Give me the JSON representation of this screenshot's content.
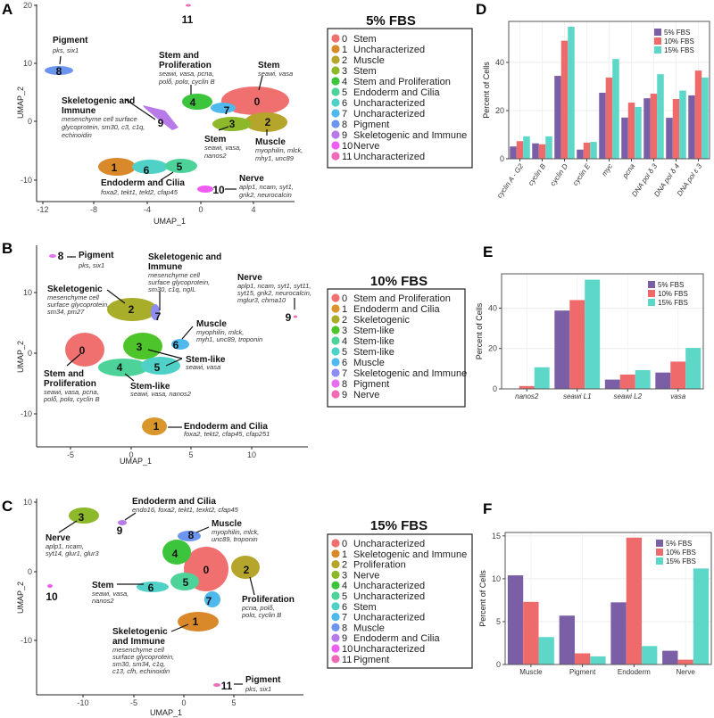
{
  "panels": {
    "A": {
      "label": "A"
    },
    "B": {
      "label": "B"
    },
    "C": {
      "label": "C"
    },
    "D": {
      "label": "D"
    },
    "E": {
      "label": "E"
    },
    "F": {
      "label": "F"
    }
  },
  "colors": {
    "fbs5": "#7b5fa6",
    "fbs10": "#ef6b6b",
    "fbs15": "#5dd8c8"
  },
  "umap": [
    {
      "id": "A",
      "xlabel": "UMAP_1",
      "ylabel": "UMAP_2",
      "xticks": [
        "-12",
        "-8",
        "-4",
        "0",
        "4"
      ],
      "yticks": [
        "20",
        "10",
        "0",
        "-10"
      ],
      "legend_title": "5% FBS",
      "legend": [
        {
          "num": "0",
          "label": "Stem",
          "color": "#f07070"
        },
        {
          "num": "1",
          "label": "Uncharacterized",
          "color": "#d9882a"
        },
        {
          "num": "2",
          "label": "Muscle",
          "color": "#b5a52a"
        },
        {
          "num": "3",
          "label": "Stem",
          "color": "#8db82a"
        },
        {
          "num": "4",
          "label": "Stem and Proliferation",
          "color": "#3cc43c"
        },
        {
          "num": "5",
          "label": "Endoderm and Cilia",
          "color": "#4dd39a"
        },
        {
          "num": "6",
          "label": "Uncharacterized",
          "color": "#4fd1c8"
        },
        {
          "num": "7",
          "label": "Uncharacterized",
          "color": "#4fb8ec"
        },
        {
          "num": "8",
          "label": "Pigment",
          "color": "#6b95ee"
        },
        {
          "num": "9",
          "label": "Skeletogenic and Immune",
          "color": "#b77ae8"
        },
        {
          "num": "10",
          "label": "Nerve",
          "color": "#ee5ef0"
        },
        {
          "num": "11",
          "label": "Uncharacterized",
          "color": "#f06ab8"
        }
      ],
      "annotations": [
        {
          "title": "Pigment",
          "genes": [
            "pks, six1"
          ]
        },
        {
          "title": "Stem and",
          "title2": "Proliferation",
          "genes": [
            "seawi, vasa, pcna,",
            "polδ, polα, cyclin B"
          ]
        },
        {
          "title": "Stem",
          "genes": [
            "seawi, vasa"
          ]
        },
        {
          "title": "Skeletogenic and",
          "title2": "Immune",
          "genes": [
            "mesenchyme cell surface",
            "glycoprotein, sm30, c3, c1q,",
            "echinoidin"
          ]
        },
        {
          "title": "Stem",
          "genes": [
            "seawi, vasa,",
            "nanos2"
          ]
        },
        {
          "title": "Muscle",
          "genes": [
            "myophilin, mlck,",
            "mhy1, unc89"
          ]
        },
        {
          "title": "Endoderm and Cilia",
          "genes": [
            "foxa2, tekt1, tekt2, cfap45"
          ]
        },
        {
          "title": "Nerve",
          "genes": [
            "aplp1, ncam, syt1,",
            "grik2, neurocalcin"
          ]
        }
      ]
    },
    {
      "id": "B",
      "xlabel": "UMAP_1",
      "ylabel": "UMAP_2",
      "xticks": [
        "-5",
        "0",
        "5",
        "10"
      ],
      "yticks": [
        "10",
        "0",
        "-10"
      ],
      "legend_title": "10% FBS",
      "legend": [
        {
          "num": "0",
          "label": "Stem and Proliferation",
          "color": "#f07070"
        },
        {
          "num": "1",
          "label": "Endoderm and Cilia",
          "color": "#d9962a"
        },
        {
          "num": "2",
          "label": "Skeletogenic",
          "color": "#a8ad2a"
        },
        {
          "num": "3",
          "label": "Stem-like",
          "color": "#4cc42a"
        },
        {
          "num": "4",
          "label": "Stem-like",
          "color": "#4dd39a"
        },
        {
          "num": "5",
          "label": "Stem-like",
          "color": "#4fd1c8"
        },
        {
          "num": "6",
          "label": "Muscle",
          "color": "#4fb8ec"
        },
        {
          "num": "7",
          "label": "Skeletogenic and Immune",
          "color": "#8f8cf0"
        },
        {
          "num": "8",
          "label": "Pigment",
          "color": "#e46ef0"
        },
        {
          "num": "9",
          "label": "Nerve",
          "color": "#f06ab8"
        }
      ],
      "annotations": [
        {
          "title": "Pigment",
          "genes": [
            "pks, six1"
          ]
        },
        {
          "title": "Skeletogenic and",
          "title2": "Immune",
          "genes": [
            "mesenchyme cell",
            "surface glycoprotein,",
            "sm30, c1q, ngIL"
          ]
        },
        {
          "title": "Skeletogenic",
          "genes": [
            "mesenchyme cell",
            "surface glycoprotein,",
            "sm34, pm27"
          ]
        },
        {
          "title": "Nerve",
          "genes": [
            "aplp1, ncam, syt1, syt11,",
            "syt15, grik2, neurocalcin,",
            "mglur3, chrna10"
          ]
        },
        {
          "title": "Muscle",
          "genes": [
            "myophilin, mlck,",
            "myh1, unc89, troponin"
          ]
        },
        {
          "title": "Stem-like",
          "genes": [
            "seawi, vasa"
          ]
        },
        {
          "title": "Stem and",
          "title2": "Proliferation",
          "genes": [
            "seawi, vasa, pcna,",
            "polδ, polα, cyclin B"
          ]
        },
        {
          "title": "Stem-like",
          "genes": [
            "seawi, vasa, nanos2"
          ]
        },
        {
          "title": "Endoderm and Cilia",
          "genes": [
            "foxa2, tekt2, cfap45, cfap251"
          ]
        }
      ]
    },
    {
      "id": "C",
      "xlabel": "UMAP_1",
      "ylabel": "UMAP_2",
      "xticks": [
        "-10",
        "-5",
        "0",
        "5"
      ],
      "yticks": [
        "10",
        "0",
        "-10"
      ],
      "legend_title": "15% FBS",
      "legend": [
        {
          "num": "0",
          "label": "Uncharacterized",
          "color": "#f07070"
        },
        {
          "num": "1",
          "label": "Skeletogenic and Immune",
          "color": "#d9882a"
        },
        {
          "num": "2",
          "label": "Proliferation",
          "color": "#b5a52a"
        },
        {
          "num": "3",
          "label": "Nerve",
          "color": "#8db82a"
        },
        {
          "num": "4",
          "label": "Uncharacterized",
          "color": "#3cc43c"
        },
        {
          "num": "5",
          "label": "Uncharacterized",
          "color": "#4dd39a"
        },
        {
          "num": "6",
          "label": "Stem",
          "color": "#4fd1c8"
        },
        {
          "num": "7",
          "label": "Uncharacterized",
          "color": "#4fb8ec"
        },
        {
          "num": "8",
          "label": "Muscle",
          "color": "#6b95ee"
        },
        {
          "num": "9",
          "label": "Endoderm and Cilia",
          "color": "#b77ae8"
        },
        {
          "num": "10",
          "label": "Uncharacterized",
          "color": "#ee5ef0"
        },
        {
          "num": "11",
          "label": "Pigment",
          "color": "#f06ab8"
        }
      ],
      "annotations": [
        {
          "title": "Endoderm and Cilia",
          "genes": [
            "endo16, foxa2, tekt1, texkt2, cfap45"
          ]
        },
        {
          "title": "Muscle",
          "genes": [
            "myophilin, mlck,",
            "unc89, troponin"
          ]
        },
        {
          "title": "Nerve",
          "genes": [
            "aplp1, ncam,",
            "syt14, glur1, glur3"
          ]
        },
        {
          "title": "Stem",
          "genes": [
            "seawi, vasa,",
            "nanos2"
          ]
        },
        {
          "title": "Proliferation",
          "genes": [
            "pcna, polδ,",
            "polα, cyclin B"
          ]
        },
        {
          "title": "Skeletogenic",
          "title2": "and Immune",
          "genes": [
            "mesenchyme cell",
            "surface glycoprotein,",
            "sm30, sm34, c1q,",
            "c13, cfh, echinoidin"
          ]
        },
        {
          "title": "Pigment",
          "genes": [
            "pks, six1"
          ]
        }
      ]
    }
  ],
  "chart_data": [
    {
      "id": "D",
      "type": "bar",
      "title": "",
      "xlabel": "",
      "ylabel": "Percent of Cells",
      "ylim": [
        0,
        57
      ],
      "yticks": [
        0,
        20,
        40
      ],
      "grid": true,
      "legend_position": "top-right",
      "italic_categories": true,
      "categories": [
        "cyclin A - G2",
        "cyclin B",
        "cyclin D",
        "cyclin E",
        "myc",
        "pcna",
        "DNA pol δ 3",
        "DNA pol δ 4",
        "DNA pol ε 3"
      ],
      "series": [
        {
          "name": "5% FBS",
          "values": [
            5.1,
            6.4,
            34.4,
            3.8,
            27.4,
            17.1,
            25.1,
            17.0,
            26.3
          ]
        },
        {
          "name": "10% FBS",
          "values": [
            7.3,
            6.0,
            49.0,
            6.7,
            33.7,
            23.3,
            27.0,
            24.8,
            36.6
          ]
        },
        {
          "name": "15% FBS",
          "values": [
            9.3,
            9.3,
            54.8,
            7.0,
            41.4,
            21.5,
            35.1,
            28.3,
            33.7
          ]
        }
      ]
    },
    {
      "id": "E",
      "type": "bar",
      "title": "",
      "xlabel": "",
      "ylabel": "Percent of Cells",
      "ylim": [
        0,
        57
      ],
      "yticks": [
        0,
        20,
        40
      ],
      "grid": true,
      "legend_position": "top-right",
      "italic_categories": true,
      "categories": [
        "nanos2",
        "seawi L1",
        "seawi L2",
        "vasa"
      ],
      "series": [
        {
          "name": "5% FBS",
          "values": [
            0.2,
            38.8,
            4.6,
            8.1
          ]
        },
        {
          "name": "10% FBS",
          "values": [
            1.4,
            44.0,
            7.1,
            13.5
          ]
        },
        {
          "name": "15% FBS",
          "values": [
            10.7,
            54.1,
            9.3,
            20.3
          ]
        }
      ]
    },
    {
      "id": "F",
      "type": "bar",
      "title": "",
      "xlabel": "",
      "ylabel": "Percent of Cells",
      "ylim": [
        0,
        15.4
      ],
      "yticks": [
        0,
        5,
        10,
        15
      ],
      "grid": true,
      "legend_position": "top-right",
      "italic_categories": false,
      "categories": [
        "Muscle",
        "Pigment",
        "Endoderm",
        "Nerve"
      ],
      "series": [
        {
          "name": "5% FBS",
          "values": [
            10.4,
            5.7,
            7.25,
            1.6
          ]
        },
        {
          "name": "10% FBS",
          "values": [
            7.3,
            1.3,
            14.8,
            0.56
          ]
        },
        {
          "name": "15% FBS",
          "values": [
            3.2,
            0.95,
            2.15,
            11.2
          ]
        }
      ]
    }
  ]
}
